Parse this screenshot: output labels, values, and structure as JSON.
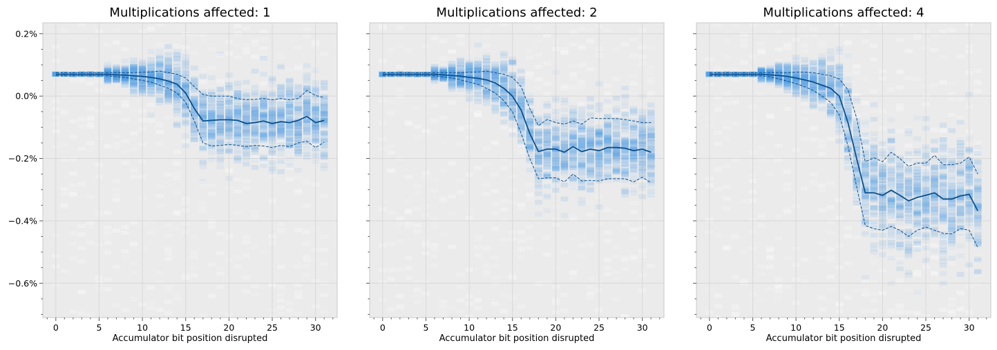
{
  "chart_data": [
    {
      "type": "line",
      "title": "Multiplications affected: 1",
      "xlabel": "Accumulator bit position disrupted",
      "ylabel": "",
      "xlim": [
        -1.5,
        32.5
      ],
      "ylim": [
        -0.71,
        0.235
      ],
      "xticks": [
        0,
        5,
        10,
        15,
        20,
        25,
        30
      ],
      "yticks": [
        0.2,
        0.0,
        -0.2,
        -0.4,
        -0.6
      ],
      "ytick_format": "percent",
      "grid": true,
      "x": [
        0,
        1,
        2,
        3,
        4,
        5,
        6,
        7,
        8,
        9,
        10,
        11,
        12,
        13,
        14,
        15,
        16,
        17,
        18,
        19,
        20,
        21,
        22,
        23,
        24,
        25,
        26,
        27,
        28,
        29,
        30,
        31
      ],
      "series": [
        {
          "style": "solid",
          "values": [
            0.07,
            0.07,
            0.07,
            0.07,
            0.07,
            0.07,
            0.07,
            0.068,
            0.067,
            0.065,
            0.063,
            0.06,
            0.055,
            0.048,
            0.038,
            0.01,
            -0.04,
            -0.08,
            -0.078,
            -0.076,
            -0.076,
            -0.078,
            -0.088,
            -0.085,
            -0.08,
            -0.088,
            -0.082,
            -0.085,
            -0.078,
            -0.065,
            -0.085,
            -0.078
          ]
        },
        {
          "style": "dashed",
          "values": [
            0.075,
            0.075,
            0.075,
            0.075,
            0.075,
            0.075,
            0.075,
            0.075,
            0.075,
            0.075,
            0.077,
            0.077,
            0.08,
            0.075,
            0.07,
            0.058,
            0.03,
            0.005,
            0.0,
            0.0,
            0.0,
            -0.008,
            -0.012,
            -0.01,
            -0.008,
            -0.012,
            -0.008,
            -0.012,
            -0.008,
            0.018,
            0.002,
            -0.005
          ]
        },
        {
          "style": "dashed",
          "values": [
            0.065,
            0.065,
            0.065,
            0.065,
            0.065,
            0.065,
            0.065,
            0.062,
            0.06,
            0.055,
            0.05,
            0.045,
            0.035,
            0.025,
            0.01,
            -0.02,
            -0.08,
            -0.15,
            -0.16,
            -0.158,
            -0.155,
            -0.158,
            -0.162,
            -0.158,
            -0.16,
            -0.165,
            -0.158,
            -0.162,
            -0.15,
            -0.145,
            -0.165,
            -0.148
          ]
        }
      ],
      "spread_sd": [
        0,
        0,
        0,
        0,
        0,
        0,
        0.01,
        0.01,
        0.015,
        0.02,
        0.025,
        0.03,
        0.035,
        0.04,
        0.045,
        0.05,
        0.055,
        0.06,
        0.06,
        0.06,
        0.06,
        0.06,
        0.06,
        0.06,
        0.06,
        0.06,
        0.06,
        0.06,
        0.06,
        0.06,
        0.06,
        0.06
      ]
    },
    {
      "type": "line",
      "title": "Multiplications affected: 2",
      "xlabel": "Accumulator bit position disrupted",
      "ylabel": "",
      "xlim": [
        -1.5,
        32.5
      ],
      "ylim": [
        -0.71,
        0.235
      ],
      "xticks": [
        0,
        5,
        10,
        15,
        20,
        25,
        30
      ],
      "yticks": [
        0.2,
        0.0,
        -0.2,
        -0.4,
        -0.6
      ],
      "ytick_format": "percent",
      "grid": true,
      "x": [
        0,
        1,
        2,
        3,
        4,
        5,
        6,
        7,
        8,
        9,
        10,
        11,
        12,
        13,
        14,
        15,
        16,
        17,
        18,
        19,
        20,
        21,
        22,
        23,
        24,
        25,
        26,
        27,
        28,
        29,
        30,
        31
      ],
      "series": [
        {
          "style": "solid",
          "values": [
            0.07,
            0.07,
            0.07,
            0.07,
            0.07,
            0.07,
            0.07,
            0.068,
            0.066,
            0.064,
            0.06,
            0.057,
            0.052,
            0.042,
            0.025,
            0.0,
            -0.045,
            -0.12,
            -0.178,
            -0.17,
            -0.17,
            -0.18,
            -0.162,
            -0.178,
            -0.17,
            -0.175,
            -0.165,
            -0.165,
            -0.167,
            -0.175,
            -0.17,
            -0.18
          ]
        },
        {
          "style": "dashed",
          "values": [
            0.075,
            0.075,
            0.075,
            0.075,
            0.075,
            0.075,
            0.075,
            0.075,
            0.075,
            0.075,
            0.077,
            0.077,
            0.08,
            0.075,
            0.07,
            0.06,
            0.03,
            -0.04,
            -0.095,
            -0.075,
            -0.085,
            -0.09,
            -0.08,
            -0.09,
            -0.07,
            -0.072,
            -0.072,
            -0.072,
            -0.075,
            -0.08,
            -0.085,
            -0.085
          ]
        },
        {
          "style": "dashed",
          "values": [
            0.065,
            0.065,
            0.065,
            0.065,
            0.065,
            0.065,
            0.065,
            0.062,
            0.058,
            0.052,
            0.045,
            0.038,
            0.025,
            0.01,
            -0.015,
            -0.05,
            -0.12,
            -0.2,
            -0.265,
            -0.262,
            -0.262,
            -0.275,
            -0.25,
            -0.272,
            -0.27,
            -0.272,
            -0.265,
            -0.265,
            -0.265,
            -0.275,
            -0.26,
            -0.278
          ]
        }
      ],
      "spread_sd": [
        0,
        0,
        0,
        0,
        0,
        0,
        0.01,
        0.01,
        0.015,
        0.02,
        0.025,
        0.03,
        0.035,
        0.04,
        0.045,
        0.05,
        0.055,
        0.06,
        0.065,
        0.065,
        0.065,
        0.065,
        0.065,
        0.065,
        0.065,
        0.065,
        0.065,
        0.065,
        0.065,
        0.065,
        0.065,
        0.065
      ]
    },
    {
      "type": "line",
      "title": "Multiplications affected: 4",
      "xlabel": "Accumulator bit position disrupted",
      "ylabel": "",
      "xlim": [
        -1.5,
        32.5
      ],
      "ylim": [
        -0.71,
        0.235
      ],
      "xticks": [
        0,
        5,
        10,
        15,
        20,
        25,
        30
      ],
      "yticks": [
        0.2,
        0.0,
        -0.2,
        -0.4,
        -0.6
      ],
      "ytick_format": "percent",
      "grid": true,
      "x": [
        0,
        1,
        2,
        3,
        4,
        5,
        6,
        7,
        8,
        9,
        10,
        11,
        12,
        13,
        14,
        15,
        16,
        17,
        18,
        19,
        20,
        21,
        22,
        23,
        24,
        25,
        26,
        27,
        28,
        29,
        30,
        31
      ],
      "series": [
        {
          "style": "solid",
          "values": [
            0.07,
            0.07,
            0.07,
            0.07,
            0.07,
            0.07,
            0.07,
            0.068,
            0.066,
            0.063,
            0.058,
            0.052,
            0.045,
            0.035,
            0.025,
            0.0,
            -0.085,
            -0.2,
            -0.31,
            -0.31,
            -0.318,
            -0.302,
            -0.318,
            -0.336,
            -0.325,
            -0.318,
            -0.31,
            -0.33,
            -0.33,
            -0.32,
            -0.315,
            -0.368
          ]
        },
        {
          "style": "dashed",
          "values": [
            0.075,
            0.075,
            0.075,
            0.075,
            0.075,
            0.075,
            0.075,
            0.075,
            0.075,
            0.075,
            0.077,
            0.077,
            0.075,
            0.07,
            0.065,
            0.055,
            0.02,
            -0.07,
            -0.21,
            -0.198,
            -0.21,
            -0.18,
            -0.2,
            -0.225,
            -0.215,
            -0.215,
            -0.19,
            -0.22,
            -0.22,
            -0.215,
            -0.195,
            -0.25
          ]
        },
        {
          "style": "dashed",
          "values": [
            0.065,
            0.065,
            0.065,
            0.065,
            0.065,
            0.065,
            0.065,
            0.062,
            0.055,
            0.048,
            0.04,
            0.03,
            0.018,
            0.0,
            -0.02,
            -0.06,
            -0.16,
            -0.29,
            -0.415,
            -0.425,
            -0.43,
            -0.418,
            -0.43,
            -0.45,
            -0.43,
            -0.42,
            -0.43,
            -0.44,
            -0.442,
            -0.425,
            -0.43,
            -0.485
          ]
        }
      ],
      "spread_sd": [
        0,
        0,
        0,
        0,
        0,
        0,
        0.01,
        0.01,
        0.015,
        0.02,
        0.025,
        0.03,
        0.035,
        0.04,
        0.05,
        0.06,
        0.07,
        0.08,
        0.09,
        0.09,
        0.09,
        0.09,
        0.09,
        0.09,
        0.09,
        0.09,
        0.09,
        0.09,
        0.09,
        0.09,
        0.09,
        0.09
      ]
    }
  ],
  "colors": {
    "axes_bg": "#ebebeb",
    "grid": "#d8d8d8",
    "spine": "#c8c8c8",
    "line": "#0b4f8a",
    "density": "#4a9ee8"
  }
}
